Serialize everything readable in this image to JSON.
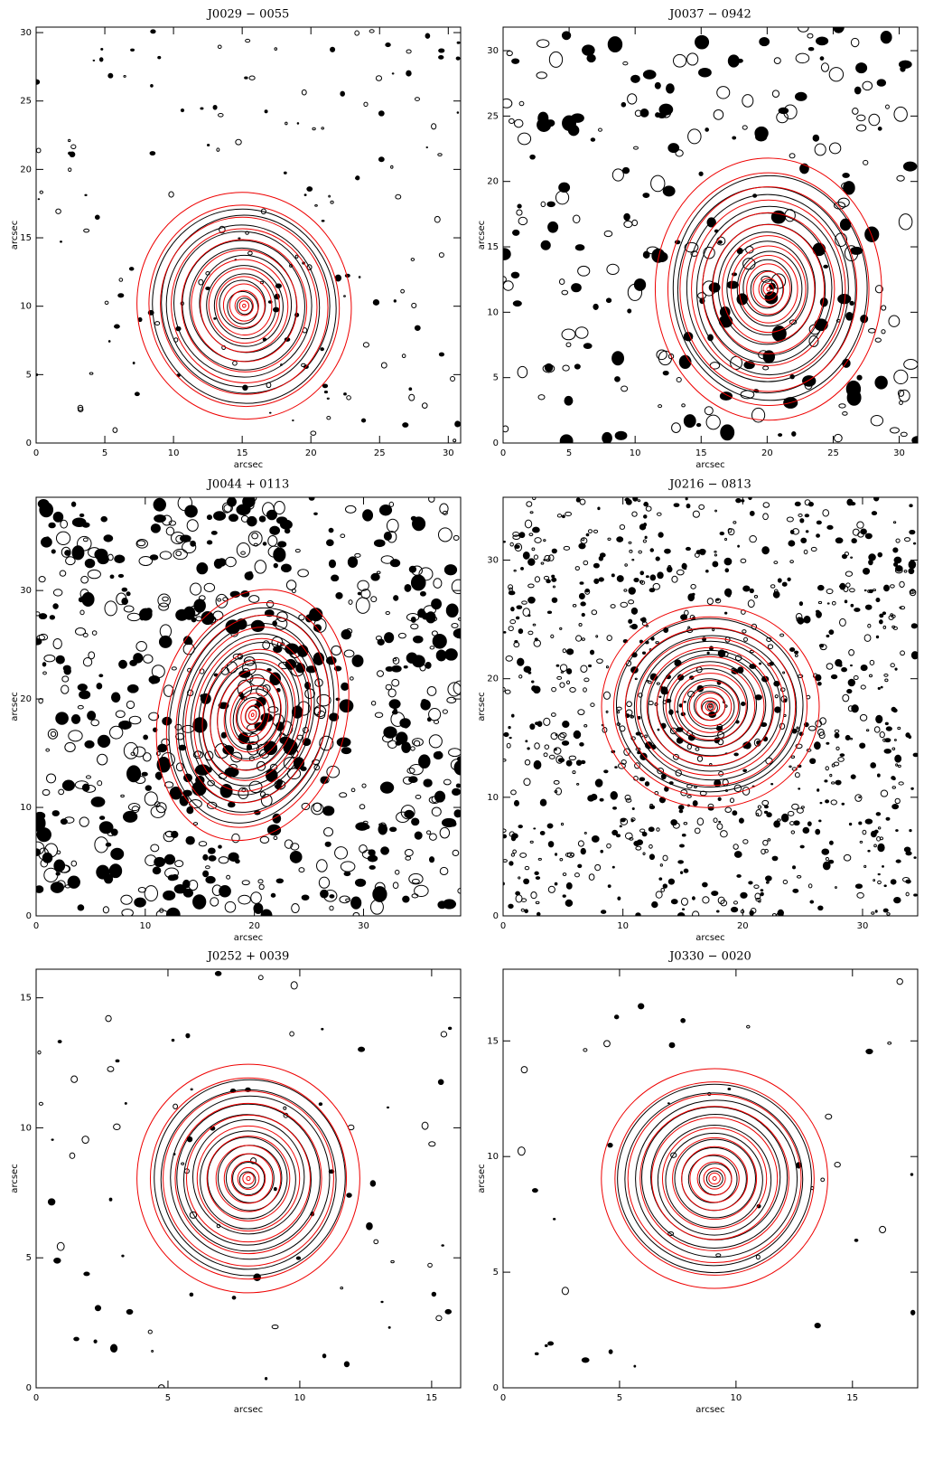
{
  "chart_data": [
    {
      "type": "contour",
      "title": "J0029 − 0055",
      "xlabel": "arcsec",
      "ylabel": "arcsec",
      "xlim": [
        0,
        30.9
      ],
      "ylim": [
        0,
        30.4
      ],
      "xticks": [
        0,
        5,
        10,
        15,
        20,
        25,
        30
      ],
      "yticks": [
        0,
        5,
        10,
        15,
        20,
        25,
        30
      ]
    },
    {
      "type": "contour",
      "title": "J0037 − 0942",
      "xlabel": "arcsec",
      "ylabel": "arcsec",
      "xlim": [
        0,
        31.4
      ],
      "ylim": [
        0,
        31.8
      ],
      "xticks": [
        0,
        5,
        10,
        15,
        20,
        25,
        30
      ],
      "yticks": [
        0,
        5,
        10,
        15,
        20,
        25,
        30
      ]
    },
    {
      "type": "contour",
      "title": "J0044 + 0113",
      "xlabel": "arcsec",
      "ylabel": "arcsec",
      "xlim": [
        0,
        38.9
      ],
      "ylim": [
        0,
        38.6
      ],
      "xticks": [
        0,
        10,
        20,
        30
      ],
      "yticks": [
        0,
        10,
        20,
        30
      ]
    },
    {
      "type": "contour",
      "title": "J0216 − 0813",
      "xlabel": "arcsec",
      "ylabel": "arcsec",
      "xlim": [
        0,
        34.6
      ],
      "ylim": [
        0,
        35.3
      ],
      "xticks": [
        0,
        10,
        20,
        30
      ],
      "yticks": [
        0,
        10,
        20,
        30
      ]
    },
    {
      "type": "contour",
      "title": "J0252 + 0039",
      "xlabel": "arcsec",
      "ylabel": "arcsec",
      "xlim": [
        0,
        16.1
      ],
      "ylim": [
        0,
        16.1
      ],
      "xticks": [
        0,
        5,
        10,
        15
      ],
      "yticks": [
        0,
        5,
        10,
        15
      ]
    },
    {
      "type": "contour",
      "title": "J0330 − 0020",
      "xlabel": "arcsec",
      "ylabel": "arcsec",
      "xlim": [
        0,
        17.8
      ],
      "ylim": [
        0,
        18.1
      ],
      "xticks": [
        0,
        5,
        10,
        15
      ],
      "yticks": [
        0,
        5,
        10,
        15
      ]
    }
  ]
}
